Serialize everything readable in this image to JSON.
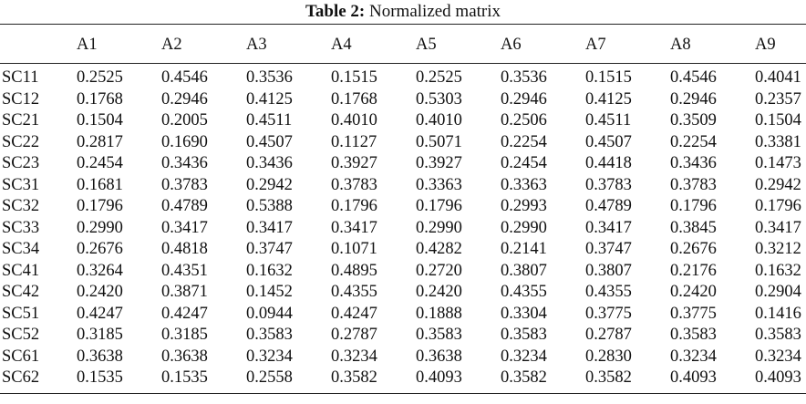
{
  "caption": {
    "label": "Table 2:",
    "title": "Normalized matrix"
  },
  "columns": [
    "",
    "A1",
    "A2",
    "A3",
    "A4",
    "A5",
    "A6",
    "A7",
    "A8",
    "A9"
  ],
  "rows": [
    {
      "name": "SC11",
      "values": [
        "0.2525",
        "0.4546",
        "0.3536",
        "0.1515",
        "0.2525",
        "0.3536",
        "0.1515",
        "0.4546",
        "0.4041"
      ]
    },
    {
      "name": "SC12",
      "values": [
        "0.1768",
        "0.2946",
        "0.4125",
        "0.1768",
        "0.5303",
        "0.2946",
        "0.4125",
        "0.2946",
        "0.2357"
      ]
    },
    {
      "name": "SC21",
      "values": [
        "0.1504",
        "0.2005",
        "0.4511",
        "0.4010",
        "0.4010",
        "0.2506",
        "0.4511",
        "0.3509",
        "0.1504"
      ]
    },
    {
      "name": "SC22",
      "values": [
        "0.2817",
        "0.1690",
        "0.4507",
        "0.1127",
        "0.5071",
        "0.2254",
        "0.4507",
        "0.2254",
        "0.3381"
      ]
    },
    {
      "name": "SC23",
      "values": [
        "0.2454",
        "0.3436",
        "0.3436",
        "0.3927",
        "0.3927",
        "0.2454",
        "0.4418",
        "0.3436",
        "0.1473"
      ]
    },
    {
      "name": "SC31",
      "values": [
        "0.1681",
        "0.3783",
        "0.2942",
        "0.3783",
        "0.3363",
        "0.3363",
        "0.3783",
        "0.3783",
        "0.2942"
      ]
    },
    {
      "name": "SC32",
      "values": [
        "0.1796",
        "0.4789",
        "0.5388",
        "0.1796",
        "0.1796",
        "0.2993",
        "0.4789",
        "0.1796",
        "0.1796"
      ]
    },
    {
      "name": "SC33",
      "values": [
        "0.2990",
        "0.3417",
        "0.3417",
        "0.3417",
        "0.2990",
        "0.2990",
        "0.3417",
        "0.3845",
        "0.3417"
      ]
    },
    {
      "name": "SC34",
      "values": [
        "0.2676",
        "0.4818",
        "0.3747",
        "0.1071",
        "0.4282",
        "0.2141",
        "0.3747",
        "0.2676",
        "0.3212"
      ]
    },
    {
      "name": "SC41",
      "values": [
        "0.3264",
        "0.4351",
        "0.1632",
        "0.4895",
        "0.2720",
        "0.3807",
        "0.3807",
        "0.2176",
        "0.1632"
      ]
    },
    {
      "name": "SC42",
      "values": [
        "0.2420",
        "0.3871",
        "0.1452",
        "0.4355",
        "0.2420",
        "0.4355",
        "0.4355",
        "0.2420",
        "0.2904"
      ]
    },
    {
      "name": "SC51",
      "values": [
        "0.4247",
        "0.4247",
        "0.0944",
        "0.4247",
        "0.1888",
        "0.3304",
        "0.3775",
        "0.3775",
        "0.1416"
      ]
    },
    {
      "name": "SC52",
      "values": [
        "0.3185",
        "0.3185",
        "0.3583",
        "0.2787",
        "0.3583",
        "0.3583",
        "0.2787",
        "0.3583",
        "0.3583"
      ]
    },
    {
      "name": "SC61",
      "values": [
        "0.3638",
        "0.3638",
        "0.3234",
        "0.3234",
        "0.3638",
        "0.3234",
        "0.2830",
        "0.3234",
        "0.3234"
      ]
    },
    {
      "name": "SC62",
      "values": [
        "0.1535",
        "0.1535",
        "0.2558",
        "0.3582",
        "0.4093",
        "0.3582",
        "0.3582",
        "0.4093",
        "0.4093"
      ]
    }
  ]
}
